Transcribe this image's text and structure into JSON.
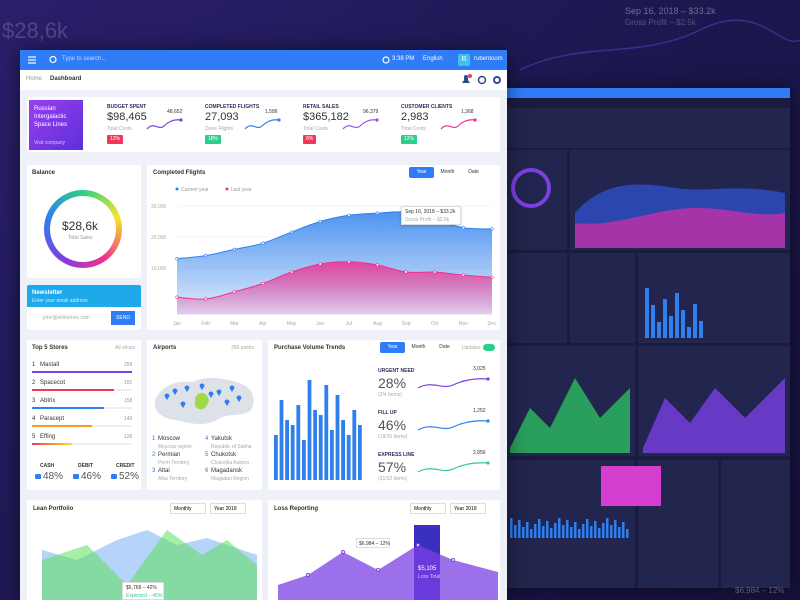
{
  "background": {
    "amount": "$28,6k",
    "tooltip": "Sep 16, 2018 – $33.2k",
    "tooltip_sub": "Gross Profit – $2.5k",
    "bottom": "$6,984 – 12%"
  },
  "topbar": {
    "search_placeholder": "Type to search...",
    "time": "3:38 PM",
    "language": "English",
    "avatar": "R",
    "user": "rubentoom"
  },
  "breadcrumb": [
    "Home",
    "Dashboard"
  ],
  "promo": {
    "title": "Russian Intergalactic Space Lines",
    "link": "Visit company"
  },
  "kpis": [
    {
      "label": "BUDGET SPENT",
      "value": "$98,465",
      "sub": "Total Costs",
      "badge": "12%",
      "spark": "48,652"
    },
    {
      "label": "COMPLETED FLIGHTS",
      "value": "27,093",
      "sub": "Done Flights",
      "badge": "18%",
      "spark": "1,586"
    },
    {
      "label": "RETAIL SALES",
      "value": "$365,182",
      "sub": "Total Costs",
      "badge": "8%",
      "spark": "96,379"
    },
    {
      "label": "CUSTOMER CLIENTS",
      "value": "2,983",
      "sub": "Total Costs",
      "badge": "12%",
      "spark": "1,368"
    }
  ],
  "balance": {
    "title": "Balance",
    "amount": "$28,6k",
    "sub": "Total Sales"
  },
  "newsletter": {
    "title": "Newsletter",
    "sub": "Enter your email address",
    "placeholder": "john@elithemes.com",
    "button": "SEND"
  },
  "completed_flights": {
    "title": "Completed Flights",
    "tabs": [
      "Year",
      "Month",
      "Date"
    ],
    "tooltip": {
      "title": "Sep 16, 2018 – $33.2k",
      "sub": "Gross Profit – $2.5k"
    },
    "chart_data": {
      "type": "area",
      "categories": [
        "Jan",
        "Feb",
        "Mar",
        "Apr",
        "May",
        "Jun",
        "Jul",
        "Aug",
        "Sep",
        "Oct",
        "Nov",
        "Dec"
      ],
      "series": [
        {
          "name": "Current year",
          "color": "#2f80ed",
          "values": [
            13000,
            14000,
            16000,
            18000,
            21600,
            25000,
            27000,
            27700,
            28000,
            25500,
            23000,
            22600
          ]
        },
        {
          "name": "Last year",
          "color": "#f0318f",
          "values": [
            600,
            0,
            2300,
            5000,
            8700,
            11300,
            12000,
            11000,
            8700,
            8700,
            7700,
            7000
          ]
        }
      ],
      "ylim": [
        -5000,
        35000
      ],
      "yticks": [
        {
          "value": 30000,
          "label": "30,000"
        },
        {
          "value": 20000,
          "label": "20,000"
        },
        {
          "value": 10000,
          "label": "10,000"
        }
      ]
    }
  },
  "top_stores": {
    "title": "Top 5 Stores",
    "link": "All shops",
    "items": [
      {
        "rank": "1",
        "name": "Mastall",
        "value": "259"
      },
      {
        "rank": "2",
        "name": "Spacecot",
        "value": "181"
      },
      {
        "rank": "3",
        "name": "Abtrix",
        "value": "158"
      },
      {
        "rank": "4",
        "name": "Paracept",
        "value": "140"
      },
      {
        "rank": "5",
        "name": "Effing",
        "value": "126"
      }
    ],
    "payments": [
      {
        "label": "CASH",
        "value": "48%"
      },
      {
        "label": "DEBIT",
        "value": "46%"
      },
      {
        "label": "CREDIT",
        "value": "52%"
      }
    ]
  },
  "airports": {
    "title": "Airports",
    "link": "356 points",
    "items": [
      {
        "n": "1",
        "city": "Moscow",
        "region": "Moscow region"
      },
      {
        "n": "2",
        "city": "Permian",
        "region": "Perm Territory"
      },
      {
        "n": "3",
        "city": "Altai",
        "region": "Altai Territory"
      },
      {
        "n": "4",
        "city": "Yakutsk",
        "region": "Republic of Sakha"
      },
      {
        "n": "5",
        "city": "Chukotsk",
        "region": "Chukotka Autono.."
      },
      {
        "n": "6",
        "city": "Magadansk",
        "region": "Magadan Region"
      }
    ]
  },
  "purchase": {
    "title": "Purchase Volume Trends",
    "tabs": [
      "Year",
      "Month",
      "Date"
    ],
    "toggle": "Updates",
    "stats": [
      {
        "label": "URGENT NEED",
        "value": "28%",
        "sub": "(2/4 Items)",
        "spark": "3,025"
      },
      {
        "label": "FILL UP",
        "value": "46%",
        "sub": "(18/25 Items)",
        "spark": "1,252"
      },
      {
        "label": "EXPRESS LINE",
        "value": "57%",
        "sub": "(31/32 Items)",
        "spark": "2,856"
      }
    ],
    "chart_data": {
      "type": "bar",
      "color": "#2f80ed",
      "values": [
        45,
        80,
        60,
        55,
        75,
        40,
        100,
        70,
        65,
        95,
        50,
        85,
        60,
        45,
        70,
        55
      ],
      "ylim": [
        0,
        100
      ]
    }
  },
  "lean_portfolio": {
    "title": "Lean Portfolio",
    "selects": [
      "Monthly",
      "Year 2018"
    ],
    "tooltip": "$5,768 – 42%",
    "tooltip_sub": "Expected – 45%"
  },
  "loss_reporting": {
    "title": "Loss Reporting",
    "selects": [
      "Monthly",
      "Year 2018"
    ],
    "tooltip": "$6,984 – 12%",
    "label2": "$5,105",
    "label2_sub": "Loss Total"
  }
}
